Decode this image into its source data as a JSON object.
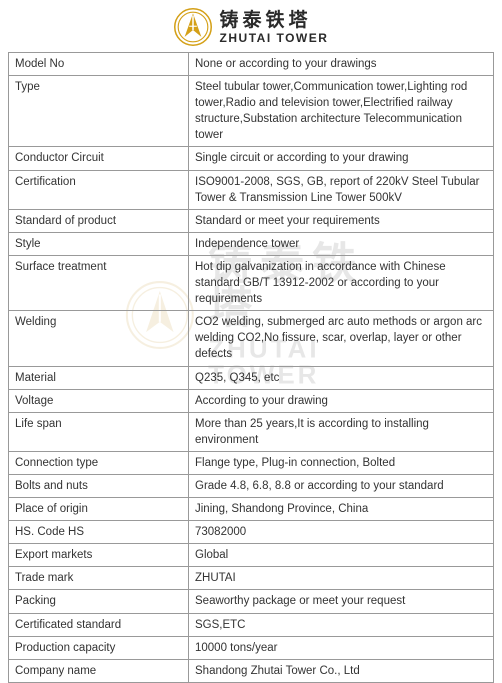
{
  "brand": {
    "chinese": "铸泰铁塔",
    "english": "ZHUTAI TOWER",
    "logo_color_outer": "#d4a017",
    "logo_color_inner": "#ffffff"
  },
  "watermark": {
    "chinese": "铸泰铁塔",
    "english": "ZHUTAI TOWER"
  },
  "table": {
    "border_color": "#999999",
    "text_color": "#333333",
    "font_size": 11.5,
    "label_width": 180,
    "rows": [
      {
        "label": "Model No",
        "value": "None or according to your drawings"
      },
      {
        "label": "Type",
        "value": "Steel tubular tower,Communication tower,Lighting rod tower,Radio and television tower,Electrified railway structure,Substation architecture Telecommunication tower"
      },
      {
        "label": "Conductor Circuit",
        "value": "Single circuit or according to your drawing"
      },
      {
        "label": "Certification",
        "value": "ISO9001-2008, SGS, GB, report of 220kV Steel Tubular Tower & Transmission Line Tower 500kV"
      },
      {
        "label": "Standard of product",
        "value": "Standard or meet your requirements"
      },
      {
        "label": "Style",
        "value": "Independence tower"
      },
      {
        "label": "Surface treatment",
        "value": "Hot dip galvanization in accordance with Chinese standard GB/T 13912-2002 or according to your requirements"
      },
      {
        "label": "Welding",
        "value": "CO2 welding, submerged arc auto methods or argon arc welding CO2,No fissure, scar, overlap, layer or other defects"
      },
      {
        "label": "Material",
        "value": "Q235, Q345, etc"
      },
      {
        "label": "Voltage",
        "value": "According to your drawing"
      },
      {
        "label": "Life span",
        "value": "More than 25 years,It is according to installing environment"
      },
      {
        "label": "Connection type",
        "value": "Flange type, Plug-in connection, Bolted"
      },
      {
        "label": "Bolts and nuts",
        "value": "Grade 4.8, 6.8, 8.8 or according to your standard"
      },
      {
        "label": "Place of origin",
        "value": "Jining, Shandong Province, China"
      },
      {
        "label": "HS. Code HS",
        "value": "73082000"
      },
      {
        "label": "Export markets",
        "value": "Global"
      },
      {
        "label": "Trade mark",
        "value": "ZHUTAI"
      },
      {
        "label": "Packing",
        "value": "Seaworthy package or meet your request"
      },
      {
        "label": "Certificated standard",
        "value": "SGS,ETC"
      },
      {
        "label": "Production capacity",
        "value": "10000 tons/year"
      },
      {
        "label": "Company name",
        "value": "Shandong Zhutai Tower Co., Ltd"
      }
    ]
  }
}
